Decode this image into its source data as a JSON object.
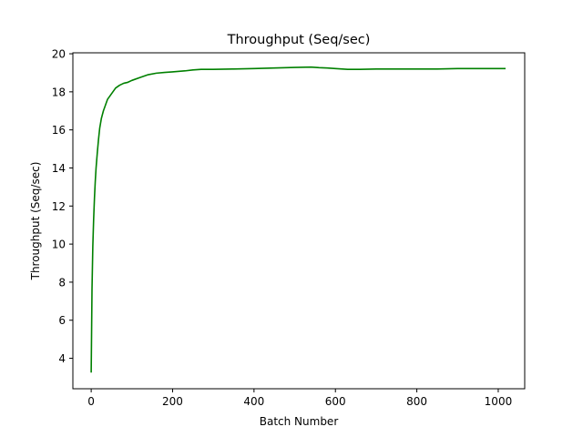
{
  "chart_data": {
    "type": "line",
    "title": "Throughput (Seq/sec)",
    "xlabel": "Batch Number",
    "ylabel": "Throughput (Seq/sec)",
    "xlim": [
      -45,
      1065
    ],
    "ylim": [
      2.4,
      20.05
    ],
    "xticks": [
      0,
      200,
      400,
      600,
      800,
      1000
    ],
    "yticks": [
      4,
      6,
      8,
      10,
      12,
      14,
      16,
      18,
      20
    ],
    "grid": false,
    "series": [
      {
        "color": "#008000",
        "x": [
          0,
          2,
          4,
          6,
          8,
          10,
          12,
          15,
          18,
          21,
          25,
          30,
          35,
          40,
          50,
          60,
          70,
          80,
          90,
          100,
          120,
          140,
          160,
          180,
          200,
          230,
          250,
          270,
          300,
          350,
          400,
          450,
          500,
          540,
          560,
          580,
          600,
          630,
          660,
          700,
          750,
          800,
          850,
          900,
          950,
          1000,
          1018
        ],
        "values": [
          3.25,
          7.6,
          9.9,
          11.3,
          12.4,
          13.3,
          14.0,
          14.8,
          15.5,
          16.1,
          16.6,
          17.0,
          17.3,
          17.6,
          17.9,
          18.2,
          18.35,
          18.45,
          18.5,
          18.6,
          18.75,
          18.9,
          18.98,
          19.02,
          19.05,
          19.1,
          19.15,
          19.18,
          19.18,
          19.2,
          19.22,
          19.25,
          19.28,
          19.3,
          19.27,
          19.25,
          19.22,
          19.18,
          19.18,
          19.2,
          19.2,
          19.2,
          19.2,
          19.22,
          19.22,
          19.22,
          19.22
        ]
      }
    ]
  }
}
